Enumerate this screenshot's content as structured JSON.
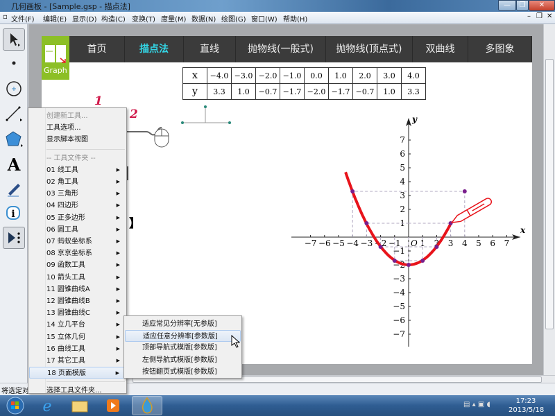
{
  "window": {
    "title": "几何画板 - [Sample.gsp - 描点法]",
    "minimize": "—",
    "restore": "❐",
    "close": "✕"
  },
  "menu": [
    "文件(F)",
    "编辑(E)",
    "显示(D)",
    "构造(C)",
    "变换(T)",
    "度量(M)",
    "数据(N)",
    "绘图(G)",
    "窗口(W)",
    "帮助(H)"
  ],
  "toolbox": [
    "select-arrow",
    "point",
    "compass",
    "straightedge",
    "polygon",
    "text",
    "marker",
    "information",
    "custom-tools"
  ],
  "nav": {
    "logo": "Graph",
    "items": [
      "首页",
      "描点法",
      "直线",
      "抛物线(一般式)",
      "抛物线(顶点式)",
      "双曲线",
      "多图象"
    ],
    "active": 1,
    "active_color": "#33d6e6"
  },
  "value_table": {
    "x_label": "x",
    "y_label": "y",
    "x": [
      "−4.0",
      "−3.0",
      "−2.0",
      "−1.0",
      "0.0",
      "1.0",
      "2.0",
      "3.0",
      "4.0"
    ],
    "y": [
      "3.3",
      "1.0",
      "−0.7",
      "−1.7",
      "−2.0",
      "−1.7",
      "−0.7",
      "1.0",
      "3.3"
    ]
  },
  "steps": {
    "one": "1",
    "two": "2",
    "bracket": "】"
  },
  "graph": {
    "x_label": "x",
    "y_label": "y",
    "origin": "O",
    "x_ticks": [
      "−7",
      "−6",
      "−5",
      "−4",
      "−3",
      "−2",
      "−1",
      "1",
      "2",
      "3",
      "4",
      "5",
      "6",
      "7"
    ],
    "y_ticks": [
      "7",
      "6",
      "5",
      "4",
      "3",
      "2",
      "1",
      "−1",
      "−2",
      "−3",
      "−4",
      "−5",
      "−6",
      "−7"
    ],
    "points": [
      [
        -4,
        3.3
      ],
      [
        -3,
        1.0
      ],
      [
        -2,
        -0.7
      ],
      [
        -1,
        -1.7
      ],
      [
        0,
        -2.0
      ],
      [
        1,
        -1.7
      ],
      [
        2,
        -0.7
      ],
      [
        3,
        1.0
      ],
      [
        4,
        3.3
      ]
    ],
    "curve_color": "#e8141b",
    "point_color": "#7a1f8c"
  },
  "context_menu": {
    "top": [
      {
        "label": "创建新工具...",
        "disabled": true
      },
      {
        "label": "工具选项..."
      },
      {
        "label": "显示脚本视图"
      }
    ],
    "folder_header": "-- 工具文件夹 --",
    "folders": [
      "01 线工具",
      "02 角工具",
      "03 三角形",
      "04 四边形",
      "05 正多边形",
      "06 圆工具",
      "07 蚂蚁坐标系",
      "08 京京坐标系",
      "09 函数工具",
      "10 箭头工具",
      "11 圆锥曲线A",
      "12 圆锥曲线B",
      "13 圆锥曲线C",
      "14 立几平台",
      "15 立体几何",
      "16 曲线工具",
      "17 其它工具",
      "18 页面模版"
    ],
    "choose": "选择工具文件夹..."
  },
  "submenu": {
    "items": [
      "适应常见分辨率[无参版]",
      "适应任意分辨率[参数版]",
      "顶部导航式模版[参数版]",
      "左侧导航式模版[参数版]",
      "按钮翻页式模版[参数版]"
    ],
    "highlighted": 1
  },
  "status": "将选定对",
  "taskbar": {
    "apps": [
      "start-orb",
      "internet-explorer",
      "file-explorer",
      "media-player",
      "geometers-sketchpad"
    ],
    "time": "17:23",
    "date": "2013/5/18"
  }
}
